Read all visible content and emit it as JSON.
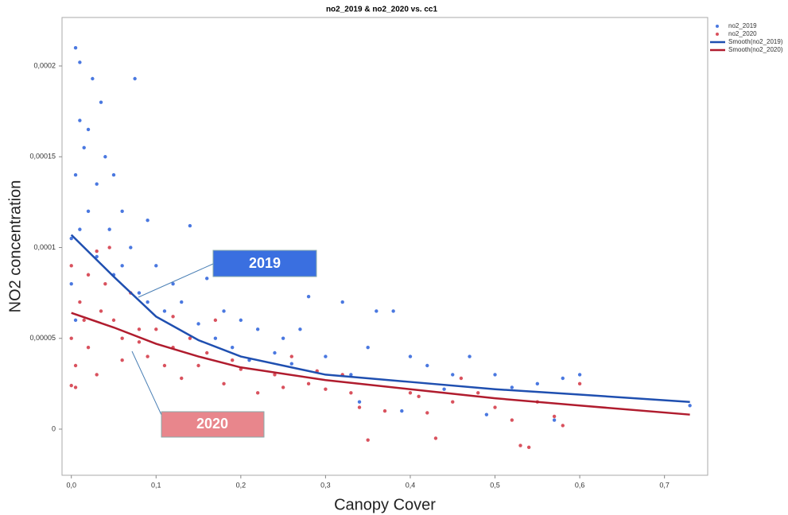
{
  "chart_data": {
    "type": "scatter",
    "title": "no2_2019 & no2_2020 vs. cc1",
    "xlabel": "Canopy Cover",
    "ylabel": "NO2 concentration",
    "xlim": [
      -0.011,
      0.751
    ],
    "ylim": [
      -2.54e-05,
      0.0002267
    ],
    "xticks": [
      {
        "value": 0,
        "label": "0,0"
      },
      {
        "value": 0.1,
        "label": "0,1"
      },
      {
        "value": 0.2,
        "label": "0,2"
      },
      {
        "value": 0.3,
        "label": "0,3"
      },
      {
        "value": 0.4,
        "label": "0,4"
      },
      {
        "value": 0.5,
        "label": "0,5"
      },
      {
        "value": 0.6,
        "label": "0,6"
      },
      {
        "value": 0.7,
        "label": "0,7"
      }
    ],
    "yticks": [
      0,
      {
        "value": 5e-05,
        "label": "0,00005"
      },
      {
        "value": 0.0001,
        "label": "0,0001"
      },
      {
        "value": 0.00015,
        "label": "0,00015"
      },
      {
        "value": 0.0002,
        "label": "0,0002"
      }
    ],
    "annotations": [
      "2019",
      "2020"
    ],
    "series": [
      {
        "name": "no2_2019",
        "color": "#4a78e0",
        "mode": "markers",
        "x": [
          0.005,
          0.01,
          0.025,
          0.075,
          0.01,
          0.02,
          0.035,
          0.04,
          0.015,
          0.005,
          0.03,
          0.05,
          0.06,
          0.02,
          0.01,
          0.045,
          0.09,
          0.14,
          0.07,
          0.03,
          0.1,
          0.12,
          0.16,
          0.08,
          0.05,
          0.13,
          0.18,
          0.2,
          0.22,
          0.15,
          0.25,
          0.28,
          0.27,
          0.32,
          0.35,
          0.36,
          0.38,
          0.4,
          0.3,
          0.24,
          0.33,
          0.42,
          0.45,
          0.5,
          0.52,
          0.55,
          0.58,
          0.6,
          0.57,
          0.49,
          0.39,
          0.34,
          0.44,
          0.19,
          0.11,
          0.06,
          0.0,
          0.0,
          0.005,
          0.73,
          0.47,
          0.26,
          0.21,
          0.17,
          0.09
        ],
        "values": [
          0.00021,
          0.000202,
          0.000193,
          0.000193,
          0.00017,
          0.000165,
          0.00018,
          0.00015,
          0.000155,
          0.00014,
          0.000135,
          0.00014,
          0.00012,
          0.00012,
          0.00011,
          0.00011,
          0.000115,
          0.000112,
          0.0001,
          9.5e-05,
          9e-05,
          8e-05,
          8.3e-05,
          7.5e-05,
          8.5e-05,
          7e-05,
          6.5e-05,
          6e-05,
          5.5e-05,
          5.8e-05,
          5e-05,
          7.3e-05,
          5.5e-05,
          7e-05,
          4.5e-05,
          6.5e-05,
          6.5e-05,
          4e-05,
          4e-05,
          4.2e-05,
          3e-05,
          3.5e-05,
          3e-05,
          3e-05,
          2.3e-05,
          2.5e-05,
          2.8e-05,
          3e-05,
          5e-06,
          8e-06,
          1e-05,
          1.5e-05,
          2.2e-05,
          4.5e-05,
          6.5e-05,
          9e-05,
          0.000105,
          8e-05,
          6e-05,
          1.3e-05,
          4e-05,
          3.6e-05,
          3.8e-05,
          5e-05,
          7e-05
        ]
      },
      {
        "name": "no2_2020",
        "color": "#d9525e",
        "mode": "markers",
        "x": [
          0.0,
          0.005,
          0.0,
          0.01,
          0.02,
          0.03,
          0.04,
          0.05,
          0.06,
          0.07,
          0.08,
          0.09,
          0.1,
          0.11,
          0.12,
          0.13,
          0.14,
          0.15,
          0.16,
          0.18,
          0.2,
          0.22,
          0.24,
          0.26,
          0.28,
          0.3,
          0.32,
          0.34,
          0.35,
          0.37,
          0.4,
          0.42,
          0.43,
          0.45,
          0.48,
          0.5,
          0.52,
          0.53,
          0.54,
          0.55,
          0.57,
          0.58,
          0.6,
          0.03,
          0.02,
          0.015,
          0.06,
          0.045,
          0.035,
          0.17,
          0.25,
          0.33,
          0.41,
          0.46,
          0.12,
          0.19,
          0.08,
          0.0,
          0.005,
          0.29
        ],
        "values": [
          2.4e-05,
          2.3e-05,
          5e-05,
          7e-05,
          8.5e-05,
          9.8e-05,
          8e-05,
          6e-05,
          5e-05,
          7.5e-05,
          5.5e-05,
          4e-05,
          5.5e-05,
          3.5e-05,
          4.5e-05,
          2.8e-05,
          5e-05,
          3.5e-05,
          4.2e-05,
          2.5e-05,
          3.3e-05,
          2e-05,
          3e-05,
          4e-05,
          2.5e-05,
          2.2e-05,
          3e-05,
          1.2e-05,
          -6e-06,
          1e-05,
          2e-05,
          9e-06,
          -5e-06,
          1.5e-05,
          2e-05,
          1.2e-05,
          5e-06,
          -9e-06,
          -1e-05,
          1.5e-05,
          7e-06,
          2e-06,
          2.5e-05,
          3e-05,
          4.5e-05,
          6e-05,
          3.8e-05,
          0.0001,
          6.5e-05,
          6e-05,
          2.3e-05,
          2e-05,
          1.8e-05,
          2.8e-05,
          6.2e-05,
          3.8e-05,
          4.8e-05,
          9e-05,
          3.5e-05,
          3.2e-05
        ]
      },
      {
        "name": "Smooth(no2_2019)",
        "color": "#1f4fb0",
        "mode": "line",
        "x": [
          0,
          0.05,
          0.1,
          0.15,
          0.2,
          0.3,
          0.4,
          0.5,
          0.6,
          0.73
        ],
        "values": [
          0.000107,
          8.4e-05,
          6.2e-05,
          4.9e-05,
          4e-05,
          3e-05,
          2.6e-05,
          2.2e-05,
          1.9e-05,
          1.5e-05
        ]
      },
      {
        "name": "Smooth(no2_2020)",
        "color": "#b01c2e",
        "mode": "line",
        "x": [
          0,
          0.05,
          0.1,
          0.15,
          0.2,
          0.3,
          0.4,
          0.5,
          0.6,
          0.73
        ],
        "values": [
          6.4e-05,
          5.6e-05,
          4.7e-05,
          4e-05,
          3.4e-05,
          2.7e-05,
          2.2e-05,
          1.7e-05,
          1.3e-05,
          8e-06
        ]
      }
    ]
  }
}
